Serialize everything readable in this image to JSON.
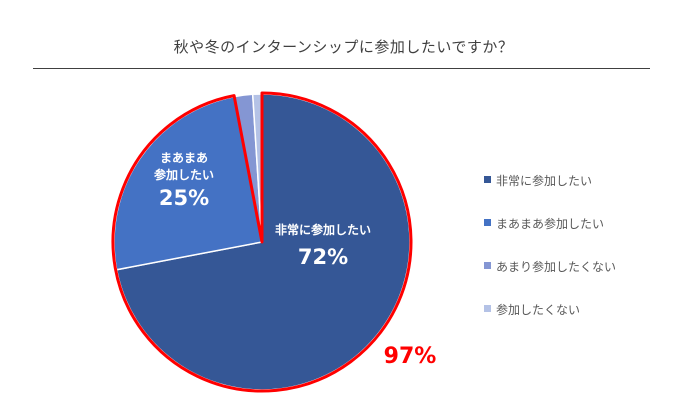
{
  "chart_data": {
    "type": "pie",
    "title": "秋や冬のインターンシップに参加したいですか？",
    "categories": [
      "非常に参加したい",
      "まあまあ参加したい",
      "あまり参加したくない",
      "参加したくない"
    ],
    "values": [
      72,
      25,
      2,
      1
    ],
    "colors": [
      "#355796",
      "#4472c4",
      "#8496d3",
      "#b4c2e6"
    ],
    "data_labels": [
      {
        "name": "非常に参加したい",
        "value": "72%"
      },
      {
        "name": "まあまあ\n参加したい",
        "value": "25%"
      },
      null,
      null
    ],
    "annotation": {
      "text": "97%",
      "color": "#ff0000"
    },
    "legend": "right"
  }
}
